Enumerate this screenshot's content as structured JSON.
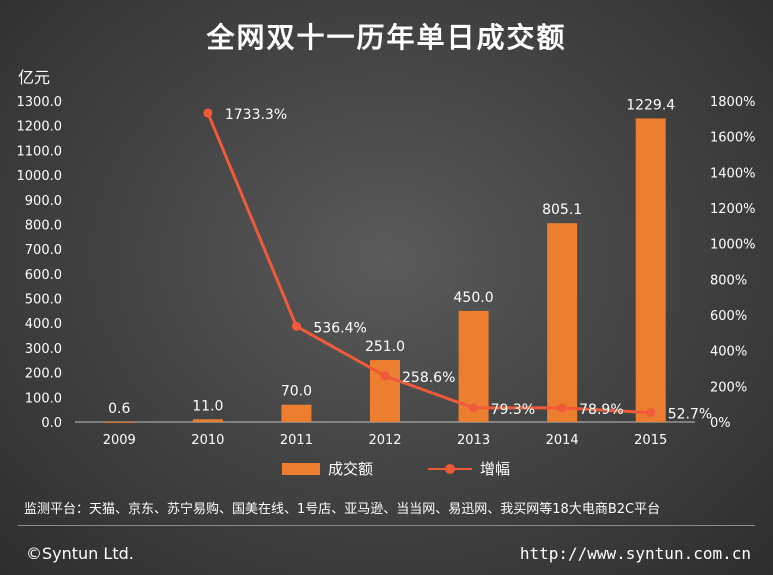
{
  "header": {
    "title": "全网双十一历年单日成交额",
    "y_unit": "亿元"
  },
  "legend": {
    "bar_label": "成交额",
    "line_label": "增幅"
  },
  "footer": {
    "source": "监测平台：天猫、京东、苏宁易购、国美在线、1号店、亚马逊、当当网、易迅网、我买网等18大电商B2C平台",
    "copyright": "©Syntun Ltd.",
    "url": "http://www.syntun.com.cn"
  },
  "colors": {
    "bar": "#ee7e2f",
    "line": "#f05a3a",
    "text": "#ffffff",
    "axis": "#bfbfbf"
  },
  "chart_data": {
    "type": "bar",
    "title": "全网双十一历年单日成交额",
    "categories": [
      "2009",
      "2010",
      "2011",
      "2012",
      "2013",
      "2014",
      "2015"
    ],
    "series": [
      {
        "name": "成交额",
        "type": "bar",
        "axis": "left",
        "values": [
          0.6,
          11.0,
          70.0,
          251.0,
          450.0,
          805.1,
          1229.4
        ],
        "labels": [
          "0.6",
          "11.0",
          "70.0",
          "251.0",
          "450.0",
          "805.1",
          "1229.4"
        ]
      },
      {
        "name": "增幅",
        "type": "line",
        "axis": "right",
        "values": [
          null,
          1733.3,
          536.4,
          258.6,
          79.3,
          78.9,
          52.7
        ],
        "labels": [
          "",
          "1733.3%",
          "536.4%",
          "258.6%",
          "79.3%",
          "78.9%",
          "52.7%"
        ]
      }
    ],
    "y_left": {
      "label": "亿元",
      "min": 0,
      "max": 1300,
      "step": 100,
      "ticks": [
        "0.0",
        "100.0",
        "200.0",
        "300.0",
        "400.0",
        "500.0",
        "600.0",
        "700.0",
        "800.0",
        "900.0",
        "1000.0",
        "1100.0",
        "1200.0",
        "1300.0"
      ]
    },
    "y_right": {
      "min": 0,
      "max": 1800,
      "step": 200,
      "ticks": [
        "0%",
        "200%",
        "400%",
        "600%",
        "800%",
        "1000%",
        "1200%",
        "1400%",
        "1600%",
        "1800%"
      ]
    },
    "grid": false,
    "legend_position": "bottom"
  }
}
